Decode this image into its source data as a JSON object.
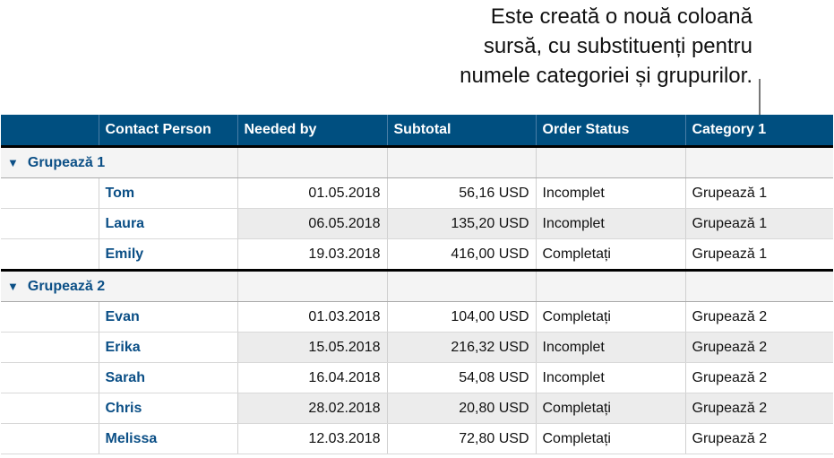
{
  "callout": {
    "lines": [
      "Este creată o nouă coloană",
      "sursă, cu substituenți pentru",
      "numele categoriei și grupurilor."
    ]
  },
  "columns": [
    "",
    "Contact Person",
    "Needed by",
    "Subtotal",
    "Order Status",
    "Category 1"
  ],
  "groups": [
    {
      "label": "Grupează 1",
      "rows": [
        [
          "Tom",
          "01.05.2018",
          "56,16 USD",
          "Incomplet",
          "Grupează 1"
        ],
        [
          "Laura",
          "06.05.2018",
          "135,20 USD",
          "Incomplet",
          "Grupează 1"
        ],
        [
          "Emily",
          "19.03.2018",
          "416,00 USD",
          "Completați",
          "Grupează 1"
        ]
      ]
    },
    {
      "label": "Grupează 2",
      "rows": [
        [
          "Evan",
          "01.03.2018",
          "104,00 USD",
          "Completați",
          "Grupează 2"
        ],
        [
          "Erika",
          "15.05.2018",
          "216,32 USD",
          "Incomplet",
          "Grupează 2"
        ],
        [
          "Sarah",
          "16.04.2018",
          "54,08 USD",
          "Incomplet",
          "Grupează 2"
        ],
        [
          "Chris",
          "28.02.2018",
          "20,80 USD",
          "Completați",
          "Grupează 2"
        ],
        [
          "Melissa",
          "12.03.2018",
          "72,80 USD",
          "Completați",
          "Grupează 2"
        ]
      ]
    }
  ],
  "colors": {
    "header": "#004f80",
    "name": "#0b4f86"
  },
  "icons": {
    "group_toggle": "triangle-down-icon"
  }
}
